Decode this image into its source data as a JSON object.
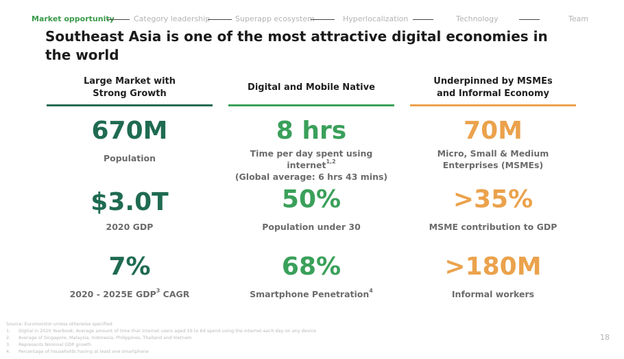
{
  "nav": {
    "items": [
      {
        "label": "Market opportunity",
        "active": true
      },
      {
        "label": "Category leadership",
        "active": false
      },
      {
        "label": "Superapp ecosystem",
        "active": false
      },
      {
        "label": "Hyperlocalization",
        "active": false
      },
      {
        "label": "Technology",
        "active": false
      },
      {
        "label": "Team",
        "active": false
      }
    ]
  },
  "title": "Southeast Asia is one of the most attractive digital economies in the world",
  "colors": {
    "dark_green": "#1f6b51",
    "green": "#3aa05a",
    "orange": "#eba24c",
    "nav_active": "#3a9a4a"
  },
  "columns": [
    {
      "heading": "Large Market with Strong Growth",
      "stats": [
        {
          "value": "670M",
          "label": "Population",
          "sup": ""
        },
        {
          "value": "$3.0T",
          "label": "2020 GDP",
          "sup": ""
        },
        {
          "value": "7%",
          "label_pre": "2020 - 2025E GDP",
          "sup": "3",
          "label_post": " CAGR"
        }
      ]
    },
    {
      "heading": "Digital and Mobile Native",
      "stats": [
        {
          "value": "8 hrs",
          "label_pre": "Time per day spent using internet",
          "sup": "1,2",
          "label_line2": "(Global average: 6 hrs 43 mins)"
        },
        {
          "value": "50%",
          "label": "Population under 30"
        },
        {
          "value": "68%",
          "label_pre": "Smartphone Penetration",
          "sup": "4"
        }
      ]
    },
    {
      "heading": "Underpinned by MSMEs and Informal Economy",
      "stats": [
        {
          "value": "70M",
          "label_line1": "Micro, Small & Medium",
          "label_line2": "Enterprises (MSMEs)"
        },
        {
          "value": ">35%",
          "label": "MSME contribution to GDP"
        },
        {
          "value": ">180M",
          "label": "Informal workers"
        }
      ]
    }
  ],
  "footnotes": {
    "source": "Source: Euromonitor unless otherwise specified",
    "notes": [
      {
        "num": "1.",
        "text": "Digital in 2020 Yearbook; Average amount of time that internet users aged 16 to 64 spend using the internet each day on any device"
      },
      {
        "num": "2.",
        "text": "Average of Singapore, Malaysia, Indonesia, Philippines, Thailand and Vietnam"
      },
      {
        "num": "3.",
        "text": "Represents Nominal GDP growth"
      },
      {
        "num": "4.",
        "text": "Percentage of households having at least one smartphone"
      }
    ]
  },
  "page_number": "18"
}
